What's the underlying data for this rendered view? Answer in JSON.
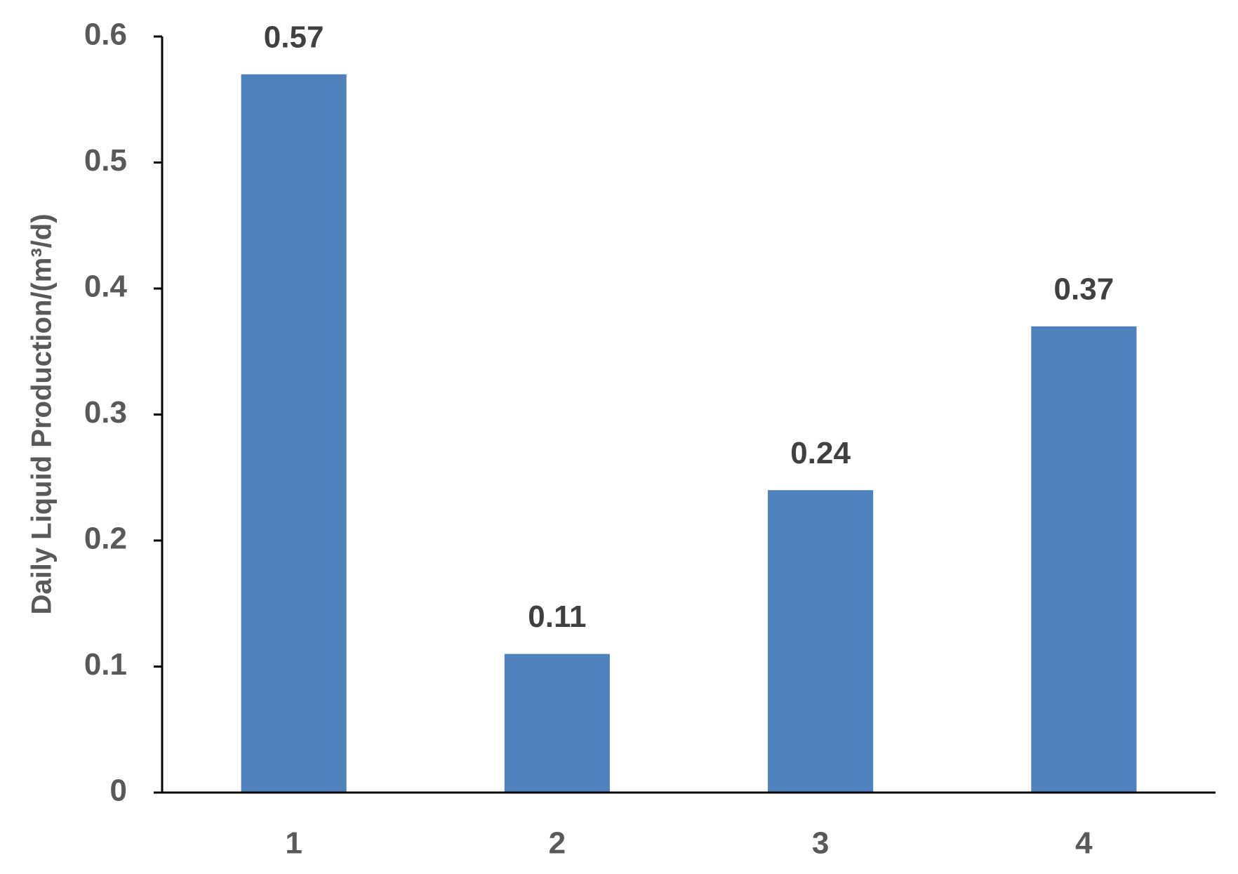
{
  "chart_data": {
    "type": "bar",
    "y_label": "Daily Liquid Production/(m³/d)",
    "categories": [
      "1",
      "2",
      "3",
      "4"
    ],
    "values": [
      0.57,
      0.11,
      0.24,
      0.37
    ],
    "color": "#4f81bd",
    "ylim": [
      0,
      0.6
    ],
    "yticks": [
      0,
      0.1,
      0.2,
      0.3,
      0.4,
      0.5,
      0.6
    ],
    "grid": false,
    "data_labels": true
  }
}
